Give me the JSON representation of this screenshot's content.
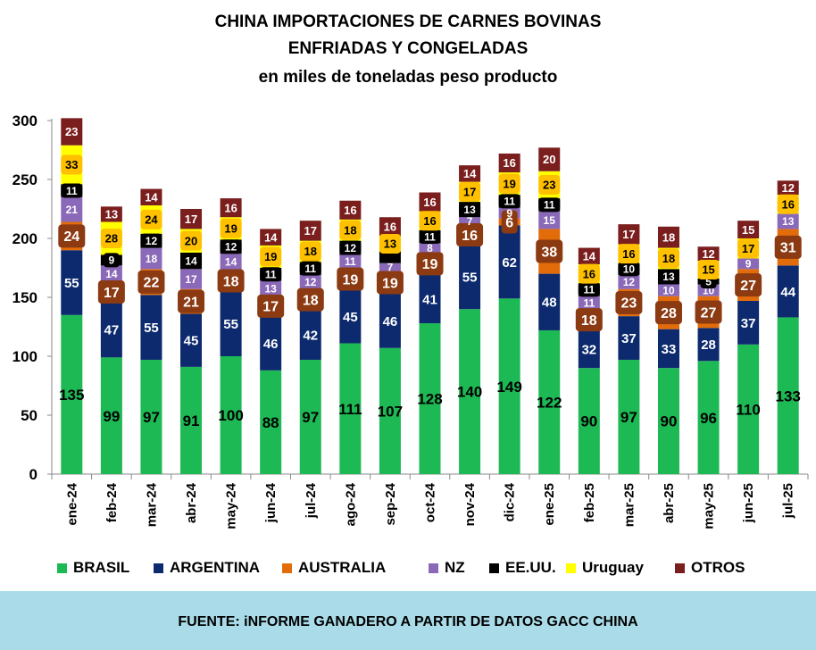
{
  "title_line1": "CHINA IMPORTACIONES DE CARNES BOVINAS",
  "title_line2": "ENFRIADAS  Y CONGELADAS",
  "title_line3": "en miles de toneladas peso producto",
  "footer": "FUENTE: iNFORME GANADERO A PARTIR DE DATOS GACC CHINA",
  "colors": {
    "BRASIL": "#1db954",
    "ARGENTINA": "#0d2a6e",
    "AUSTRALIA": "#e36c0a",
    "NZ": "#8a69b8",
    "EE.UU.": "#000000",
    "Uruguay": "#ffff00",
    "OTROS": "#7b1e1e",
    "footer_bg": "#a9dce8"
  },
  "chart_data": {
    "type": "bar",
    "stacked": true,
    "title": "CHINA IMPORTACIONES DE CARNES BOVINAS ENFRIADAS  Y CONGELADAS",
    "subtitle": "en miles de toneladas peso producto",
    "xlabel": "",
    "ylabel": "",
    "ylim": [
      0,
      300
    ],
    "yticks": [
      0,
      50,
      100,
      150,
      200,
      250,
      300
    ],
    "grid": false,
    "legend_position": "bottom",
    "categories": [
      "ene-24",
      "feb-24",
      "mar-24",
      "abr-24",
      "may-24",
      "jun-24",
      "jul-24",
      "ago-24",
      "sep-24",
      "oct-24",
      "nov-24",
      "dic-24",
      "ene-25",
      "feb-25",
      "mar-25",
      "abr-25",
      "may-25",
      "jun-25",
      "jul-25"
    ],
    "series": [
      {
        "name": "BRASIL",
        "values": [
          135,
          99,
          97,
          91,
          100,
          88,
          97,
          111,
          107,
          128,
          140,
          149,
          122,
          90,
          97,
          90,
          96,
          110,
          133
        ]
      },
      {
        "name": "ARGENTINA",
        "values": [
          55,
          47,
          55,
          45,
          55,
          46,
          42,
          45,
          46,
          41,
          55,
          62,
          48,
          32,
          37,
          33,
          28,
          37,
          44
        ]
      },
      {
        "name": "AUSTRALIA",
        "values": [
          24,
          17,
          22,
          21,
          18,
          17,
          18,
          19,
          19,
          19,
          16,
          6,
          38,
          18,
          23,
          28,
          27,
          27,
          31
        ]
      },
      {
        "name": "NZ",
        "values": [
          21,
          14,
          18,
          17,
          14,
          13,
          12,
          11,
          7,
          8,
          7,
          9,
          15,
          11,
          12,
          10,
          10,
          9,
          13
        ]
      },
      {
        "name": "EE.UU.",
        "values": [
          11,
          9,
          12,
          14,
          12,
          11,
          11,
          12,
          10,
          11,
          13,
          11,
          11,
          11,
          10,
          13,
          5,
          0,
          0
        ]
      },
      {
        "name": "Uruguay",
        "values": [
          33,
          28,
          24,
          20,
          19,
          19,
          18,
          18,
          13,
          16,
          17,
          19,
          23,
          16,
          16,
          18,
          15,
          17,
          16
        ]
      },
      {
        "name": "OTROS",
        "values": [
          23,
          13,
          14,
          17,
          16,
          14,
          17,
          16,
          16,
          16,
          14,
          16,
          20,
          14,
          17,
          18,
          12,
          15,
          12
        ]
      }
    ],
    "data_labels": {
      "BRASIL": [
        "135",
        "99",
        "97",
        "91",
        "100",
        "88",
        "97",
        "111",
        "107",
        "128",
        "140",
        "149",
        "122",
        "90",
        "97",
        "90",
        "96",
        "110",
        "133"
      ],
      "ARGENTINA": [
        "55",
        "47",
        "55",
        "45",
        "55",
        "46",
        "42",
        "45",
        "46",
        "41",
        "55",
        "62",
        "48",
        "32",
        "37",
        "33",
        "28",
        "37",
        "44"
      ],
      "AUSTRALIA": [
        "24",
        "17",
        "22",
        "21",
        "18",
        "17",
        "18",
        "19",
        "19",
        "19",
        "16",
        "6",
        "38",
        "18",
        "23",
        "28",
        "27",
        "27",
        "31"
      ],
      "NZ": [
        "21",
        "14",
        "18",
        "17",
        "14",
        "13",
        "12",
        "11",
        "7",
        "8",
        "7",
        "9",
        "15",
        "11",
        "12",
        "10",
        "10",
        "9",
        "13"
      ],
      "EE.UU.": [
        "11",
        "9",
        "12",
        "14",
        "12",
        "11",
        "11",
        "12",
        "",
        "11",
        "13",
        "11",
        "11",
        "11",
        "10",
        "13",
        "5",
        "",
        ""
      ],
      "Uruguay": [
        "33",
        "28",
        "24",
        "20",
        "19",
        "19",
        "18",
        "18",
        "13",
        "16",
        "17",
        "19",
        "23",
        "16",
        "16",
        "18",
        "15",
        "17",
        "16"
      ],
      "OTROS": [
        "23",
        "13",
        "14",
        "17",
        "16",
        "14",
        "17",
        "16",
        "16",
        "16",
        "14",
        "16",
        "20",
        "14",
        "17",
        "18",
        "12",
        "15",
        "12"
      ]
    }
  }
}
